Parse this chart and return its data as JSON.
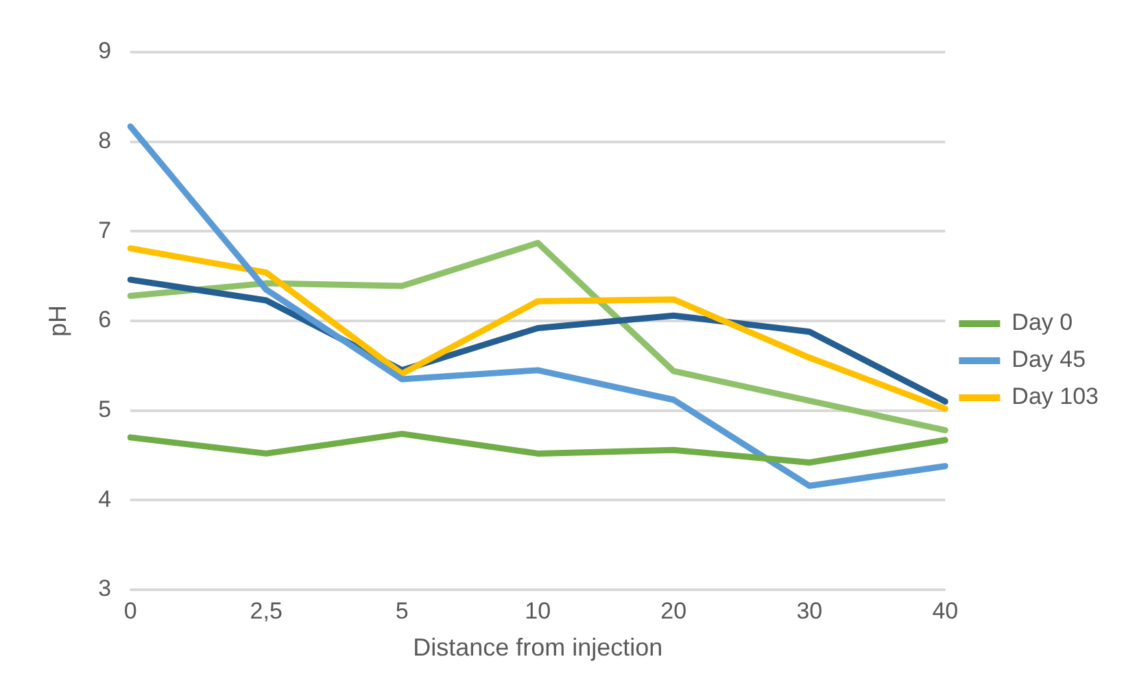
{
  "chart_data": {
    "type": "line",
    "xlabel": "Distance from injection",
    "ylabel": "pH",
    "categories": [
      "0",
      "2,5",
      "5",
      "10",
      "20",
      "30",
      "40"
    ],
    "series": [
      {
        "name": "Day 0",
        "color": "#70ad47",
        "values": [
          4.7,
          4.52,
          4.74,
          4.52,
          4.56,
          4.42,
          4.67
        ]
      },
      {
        "name": "Day 45",
        "color": "#5b9bd5",
        "values": [
          8.17,
          6.35,
          5.35,
          5.45,
          5.12,
          4.16,
          4.38
        ]
      },
      {
        "name": "Day 103",
        "color": "#ffc000",
        "values": [
          6.81,
          6.54,
          5.41,
          6.22,
          6.24,
          5.59,
          5.02
        ]
      },
      {
        "color": "#255e91",
        "values": [
          6.46,
          6.23,
          5.45,
          5.92,
          6.06,
          5.88,
          5.1
        ]
      },
      {
        "color": "#8fc16b",
        "values": [
          6.28,
          6.42,
          6.39,
          6.87,
          5.44,
          5.11,
          4.78
        ]
      }
    ],
    "ylim": [
      3,
      9
    ],
    "yticks": [
      3,
      4,
      5,
      6,
      7,
      8,
      9
    ],
    "grid": "y",
    "legend": "right",
    "marker": "none",
    "line_style": "solid"
  }
}
